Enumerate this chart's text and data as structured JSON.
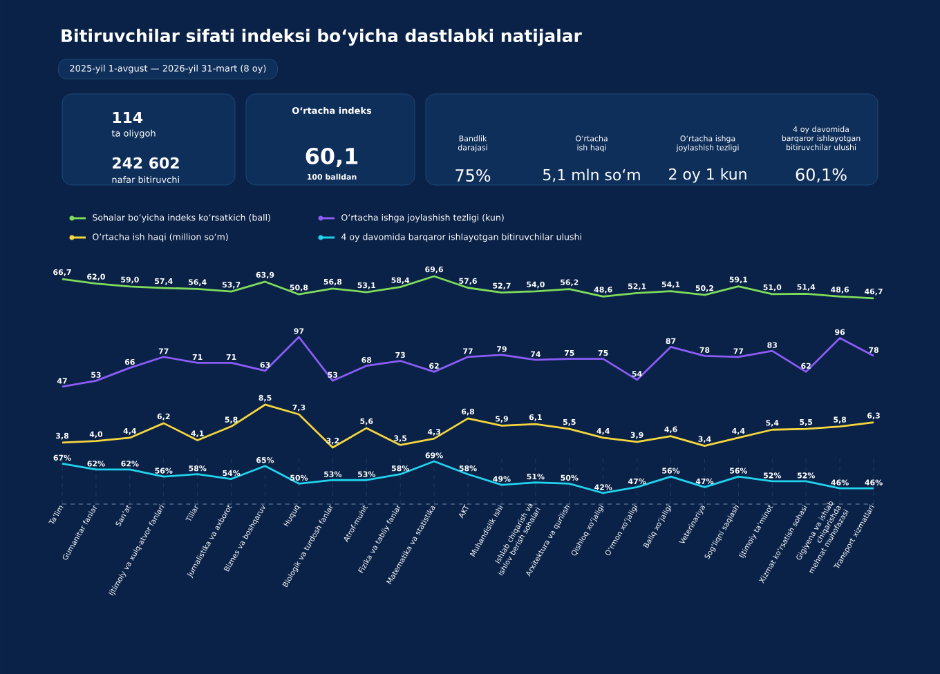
{
  "chart_data": [
    {
      "type": "other",
      "title": "Bitiruvchilar sifati indeksi boʻyicha dastlabki natijalar",
      "subtitle": "2025-yil 1-avgust — 2026-yil 31-mart (8 oy)",
      "annotations": [
        "114",
        "ta oliygoh",
        "242 602",
        "nafar bitiruvchi",
        "Oʻrtacha indeks",
        "60,1",
        "100 balldan",
        "Bandlik darajasi",
        "75%",
        "Oʻrtacha ish haqi",
        "5,1 mln soʻm",
        "Oʻrtacha ishga joylashish tezligi",
        "2 oy 1 kun",
        "4 oy davomida barqaror ishlayotgan bitiruvchilar ulushi",
        "60,1%"
      ]
    },
    {
      "type": "line",
      "categories": [
        null,
        null,
        null,
        null,
        null,
        null,
        null,
        null,
        null,
        null,
        null,
        null,
        null,
        null,
        null,
        null,
        null,
        null,
        null,
        null,
        null,
        null,
        null,
        null,
        null
      ],
      "series": [
        {
          "name": "Sohalar boʻyicha indeks koʻrsatkich (ball)",
          "color": "#7fdc5a",
          "values": [
            66.7,
            62.0,
            59.0,
            57.4,
            56.4,
            53.7,
            63.9,
            50.8,
            56.8,
            53.1,
            58.4,
            69.6,
            57.6,
            52.7,
            54.0,
            56.2,
            48.6,
            52.1,
            54.1,
            50.2,
            59.1,
            51.0,
            51.4,
            48.6,
            46.7
          ],
          "value_labels": [
            "66,7",
            "62,0",
            "59,0",
            "57,4",
            "56,4",
            "53,7",
            "63,9",
            "50,8",
            "56,8",
            "53,1",
            "58,4",
            "69,6",
            "57,6",
            "52,7",
            "54,0",
            "56,2",
            "48,6",
            "52,1",
            "54,1",
            "50,2",
            "59,1",
            "51,0",
            "51,4",
            "48,6",
            "46,7"
          ]
        }
      ],
      "grid": "x",
      "legend": "top left",
      "tick_labels": false
    },
    {
      "type": "line",
      "categories": [
        null,
        null,
        null,
        null,
        null,
        null,
        null,
        null,
        null,
        null,
        null,
        null,
        null,
        null,
        null,
        null,
        null,
        null,
        null,
        null,
        null,
        null,
        null,
        null,
        null
      ],
      "series": [
        {
          "name": "Oʻrtacha ishga joylashish tezligi (kun)",
          "color": "#8b5cf6",
          "values": [
            47,
            53,
            66,
            77,
            71,
            71,
            63,
            97,
            53,
            68,
            73,
            62,
            77,
            79,
            74,
            75,
            75,
            54,
            87,
            78,
            77,
            83,
            62,
            96,
            78
          ],
          "value_labels": [
            "47",
            "53",
            "66",
            "77",
            "71",
            "71",
            "63",
            "97",
            "53",
            "68",
            "73",
            "62",
            "77",
            "79",
            "74",
            "75",
            "75",
            "54",
            "87",
            "78",
            "77",
            "83",
            "62",
            "96",
            "78"
          ]
        }
      ],
      "grid": "x",
      "legend": "top left",
      "tick_labels": false
    },
    {
      "type": "line",
      "categories": [
        null,
        null,
        null,
        null,
        null,
        null,
        null,
        null,
        null,
        null,
        null,
        null,
        null,
        null,
        null,
        null,
        null,
        null,
        null,
        null,
        null,
        null,
        null,
        null,
        null
      ],
      "series": [
        {
          "name": "Oʻrtacha ish haqi (million soʻm)",
          "color": "#f5d63d",
          "values": [
            3.8,
            4.0,
            4.4,
            6.2,
            4.1,
            5.8,
            8.5,
            7.3,
            3.2,
            5.6,
            3.5,
            4.3,
            6.8,
            5.9,
            6.1,
            5.5,
            4.4,
            3.9,
            4.6,
            3.4,
            4.4,
            5.4,
            5.5,
            5.8,
            6.3
          ],
          "value_labels": [
            "3,8",
            "4,0",
            "4,4",
            "6,2",
            "4,1",
            "5,8",
            "8,5",
            "7,3",
            "3,2",
            "5,6",
            "3,5",
            "4,3",
            "6,8",
            "5,9",
            "6,1",
            "5,5",
            "4,4",
            "3,9",
            "4,6",
            "3,4",
            "4,4",
            "5,4",
            "5,5",
            "5,8",
            "6,3"
          ]
        }
      ],
      "grid": "x",
      "legend": "top left",
      "tick_labels": false
    },
    {
      "type": "line",
      "categories": [
        "Taʼlim",
        "Gumanitar fanlar",
        "Sanʼat",
        "Ijtimoiy va xulq-atvor fanlari",
        "Tillar",
        "Jurnalistika va axborot",
        "Biznes va boshqaruv",
        "Huquq",
        "Biologik va turdosh fanlar",
        "Atrof-muhit",
        "Fizika va tabiiy fanlar",
        "Matematika va statistika",
        "AKT",
        "Muhandislik ishi",
        "Ishlab chiqarish va ishlov berish sohalari",
        "Arxitektura va qurilish",
        "Qishloq xoʻjaligi",
        "Oʻrmon xoʻjaligi",
        "Baliq xoʻjaligi",
        "Veterinariya",
        "Sogʻliqni saqlash",
        "Ijtimoiy taʼminot",
        "Xizmat koʻrsatish sohasi",
        "Gigiyena va ishlab chiqarishda mehnat muhofazasi",
        "Transport xizmatlari"
      ],
      "series": [
        {
          "name": "4 oy davomida barqaror ishlayotgan bitiruvchilar ulushi",
          "color": "#22d3ee",
          "values": [
            67,
            62,
            62,
            56,
            58,
            54,
            65,
            50,
            53,
            53,
            58,
            69,
            58,
            49,
            51,
            50,
            42,
            47,
            56,
            47,
            56,
            52,
            52,
            46,
            46
          ],
          "value_labels": [
            "67%",
            "62%",
            "62%",
            "56%",
            "58%",
            "54%",
            "65%",
            "50%",
            "53%",
            "53%",
            "58%",
            "69%",
            "58%",
            "49%",
            "51%",
            "50%",
            "42%",
            "47%",
            "56%",
            "47%",
            "56%",
            "52%",
            "52%",
            "46%",
            "46%"
          ]
        }
      ],
      "grid": "x",
      "legend": "top left",
      "tick_labels": "x"
    }
  ]
}
